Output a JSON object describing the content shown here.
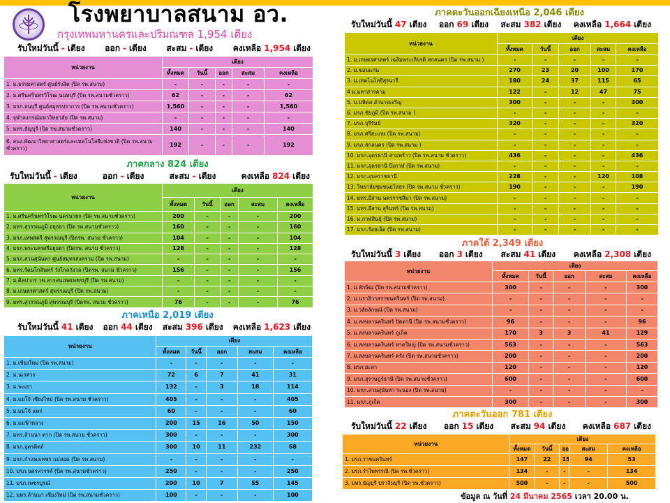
{
  "header": {
    "title": "โรงพยาบาลสนาม อว.",
    "logo_icon": "ministry-seal-icon"
  },
  "labels": {
    "new_today": "รับใหม่วันนี้",
    "beds": "เตียง",
    "out": "ออก",
    "cumulative": "สะสม",
    "remaining": "คงเหลือ"
  },
  "table_headers": {
    "unit": "หน่วยงาน",
    "beds": "เตียง",
    "total": "ทั้งหมด",
    "today": "วันนี้",
    "out": "ออก",
    "cumulative": "สะสม",
    "remaining": "คงเหลือ"
  },
  "sections": [
    {
      "id": "bangkok",
      "title": "กรุงเทพมหานครและปริมณฑล  1,954 เตียง",
      "color": "#e48ed4",
      "title_color": "#e040a8",
      "summary": {
        "new": "-",
        "out": "-",
        "cumulative": "-",
        "remaining": "1,954"
      },
      "rows": [
        [
          "1. ม.ธรรมศาสตร์ ศูนย์รังสิต (ปิด รพ.สนาม)",
          "-",
          "-",
          "-",
          "-",
          "-"
        ],
        [
          "2. ม.ศรีนครินทรวิโรฒ นนทบุรี (ปิด รพ.สนามชั่วคราว)",
          "62",
          "-",
          "-",
          "-",
          "62"
        ],
        [
          "3. มรภ.ธนบุรี ศูนย์สมุทรปราการ (ปิด รพ.สนามชั่วคราว)",
          "1,560",
          "-",
          "-",
          "-",
          "1,560"
        ],
        [
          "4. จุฬาลงกรณ์มหาวิทยาลัย  (ปิด รพ.สนาม)",
          "-",
          "-",
          "-",
          "-",
          "-"
        ],
        [
          "5. มทร.ธัญบุรี (ปิด รพ.สนามชั่วคราว)",
          "140",
          "-",
          "-",
          "-",
          "140"
        ],
        [
          "6. สนง.พัฒนาวิทยาศาสตร์และเทคโนโลยีแห่งชาติ (ปิด รพ.สนาม ชั่วคราว)",
          "192",
          "-",
          "-",
          "-",
          "192"
        ]
      ]
    },
    {
      "id": "central",
      "title": "ภาคกลาง  824 เตียง",
      "color": "#8fcf45",
      "title_color": "#22a54a",
      "summary": {
        "new": "-",
        "out": "-",
        "cumulative": "-",
        "remaining": "824"
      },
      "rows": [
        [
          "1. ม.ศรีนครินทรวิโรฒ นครนายก  (ปิด รพ.สนามชั่วคราว)",
          "200",
          "-",
          "-",
          "-",
          "200"
        ],
        [
          "2. มทร.สุวรรณภูมิ อยุธยา  (ปิด รพ.สนามชั่วคราว)",
          "160",
          "-",
          "-",
          "-",
          "160"
        ],
        [
          "3. มรภ.เทพสตรี สุพรรณบุรี (ปิดรพ. สนาม ชั่วคราว)",
          "104",
          "-",
          "-",
          "-",
          "104"
        ],
        [
          "4. มรภ.พระนครศรีอยุธยา  (ปิดรพ. สนาม ชั่วคราว)",
          "128",
          "-",
          "-",
          "-",
          "128"
        ],
        [
          "5. มรภ.สวนสุนันทา ศูนย์สมุทรสงคราม  (ปิด รพ.สนาม)",
          "-",
          "-",
          "-",
          "-",
          "-"
        ],
        [
          "6. มทร.รัตนโกสินทร์ วังไกลกังวล (ปิดรพ. สนาม ชั่วคราว)",
          "156",
          "-",
          "-",
          "-",
          "156"
        ],
        [
          "7. ม.ศิลปากร วข.สารสนเทศเพชรบุรี (ปิด รพ.สนาม)",
          "-",
          "-",
          "-",
          "-",
          "-"
        ],
        [
          "8. ม.เกษตรศาสตร์ สุพรรณบุรี  (ปิด รพ.สนาม)",
          "-",
          "-",
          "-",
          "-",
          "-"
        ],
        [
          "9. มทร.สุวรรณภูมิ  สุพรรณบุรี (ปิดรพ. สนาม ชั่วคราว)",
          "76",
          "-",
          "-",
          "-",
          "76"
        ]
      ]
    },
    {
      "id": "north",
      "title": "ภาคเหนือ  2,019 เตียง",
      "color": "#55c0f2",
      "title_color": "#1a8fd0",
      "summary": {
        "new": "41",
        "out": "44",
        "cumulative": "396",
        "remaining": "1,623"
      },
      "rows": [
        [
          "1. ม.เชียงใหม่  (ปิด รพ.สนาม)",
          "-",
          "-",
          "-",
          "-",
          "-"
        ],
        [
          "2. ม.นเรศวร",
          "72",
          "6",
          "7",
          "41",
          "31"
        ],
        [
          "3. ม.พะเยา",
          "132",
          "-",
          "3",
          "18",
          "114"
        ],
        [
          "4. ม.แม่โจ้ เชียงใหม่ (ปิด รพ.สนาม ชั่วคราว)",
          "405",
          "-",
          "-",
          "-",
          "405"
        ],
        [
          "5. ม.แม่โจ้ แพร่",
          "60",
          "-",
          "-",
          "-",
          "60"
        ],
        [
          "6. ม.แม่ฟ้าหลวง",
          "200",
          "15",
          "16",
          "50",
          "150"
        ],
        [
          "7. มทร.ล้านนา ตาก  (ปิด รพ.สนาม ชั่วคราว)",
          "300",
          "-",
          "-",
          "-",
          "300"
        ],
        [
          "8. มรภ.อุตรดิตถ์",
          "300",
          "10",
          "11",
          "232",
          "68"
        ],
        [
          "9. มรภ.กำแพงเพชร แม่สอด  (ปิด รพ.สนาม)",
          "-",
          "-",
          "-",
          "-",
          "-"
        ],
        [
          "10. มรภ.นครสวรรค์  (ปิด รพ.สนามชั่วคราว)",
          "250",
          "-",
          "-",
          "-",
          "250"
        ],
        [
          "11. มรภ.เพชรบูรณ์",
          "200",
          "10",
          "7",
          "55",
          "145"
        ],
        [
          "12. มทร.ล้านนา เชียงใหม่ (ปิด รพ.สนามชั่วคราว)",
          "100",
          "-",
          "-",
          "-",
          "100"
        ]
      ]
    },
    {
      "id": "northeast",
      "title": "ภาคตะวันออกเฉียงเหนือ  2,046 เตียง",
      "color": "#c9c800",
      "title_color": "#8a8a00",
      "summary": {
        "new": "47",
        "out": "69",
        "cumulative": "382",
        "remaining": "1,664"
      },
      "rows": [
        [
          "1. ม.เกษตรศาสตร์ เฉลิมพระเกียรติ สกลนคร (ปิด รพ.สนาม )",
          "-",
          "-",
          "-",
          "-",
          "-"
        ],
        [
          "2. ม.ขอนแก่น",
          "270",
          "23",
          "20",
          "100",
          "170"
        ],
        [
          "3. ม.เทคโนโลยีสุรนารี",
          "180",
          "24",
          "37",
          "115",
          "65"
        ],
        [
          "4 ม.มหาสารคาม",
          "122",
          "-",
          "12",
          "47",
          "75"
        ],
        [
          "5. ม.มหิดล อำนาจเจริญ",
          "300",
          "-",
          "-",
          "-",
          "300"
        ],
        [
          "6. มรภ.ชัยภูมิ   (ปิด รพ.สนาม )",
          "-",
          "-",
          "-",
          "-",
          "-"
        ],
        [
          "7. มรภ.บุรีรัมย์",
          "320",
          "-",
          "-",
          "-",
          "320"
        ],
        [
          "8. มรภ.ศรีสะเกษ   (ปิด รพ.สนาม)",
          "-",
          "-",
          "-",
          "-",
          "-"
        ],
        [
          "9. มรภ.สกลนคร  (ปิด รพ.สนาม )",
          "-",
          "-",
          "-",
          "-",
          "-"
        ],
        [
          "10. มรภ.อุดรธานี  สามพร้าว (ปิด รพ.สนาม ชั่วคราว)",
          "436",
          "-",
          "-",
          "-",
          "436"
        ],
        [
          "11. มรภ.อุดรธานี  บึงกาฬ (ปิด รพ.สนาม)",
          "-",
          "-",
          "-",
          "-",
          "-"
        ],
        [
          "12. มรภ.อุบลราชธานี",
          "228",
          "-",
          "-",
          "120",
          "108"
        ],
        [
          "13. วิทยาลัยชุมชนยโสธร  (ปิด รพ.สนาม ชั่วคราว)",
          "190",
          "-",
          "-",
          "-",
          "190"
        ],
        [
          "14. มทร.อีสาน  นครราชสีมา  (ปิด รพ.สนาม)",
          "-",
          "-",
          "-",
          "-",
          "-"
        ],
        [
          "15. มทร.อีสาน  สุรินทร์ (ปิด รพ.สนาม)",
          "-",
          "-",
          "-",
          "-",
          "-"
        ],
        [
          "16. ม.กาฬสินธุ์  (ปิด รพ.สนาม)",
          "-",
          "-",
          "-",
          "-",
          "-"
        ],
        [
          "17. มรภ.ร้อยเอ็ด  (ปิด รพ.สนาม)",
          "-",
          "-",
          "-",
          "-",
          "-"
        ]
      ]
    },
    {
      "id": "south",
      "title": "ภาคใต้  2,349 เตียง",
      "color": "#f2866a",
      "title_color": "#f05a3a",
      "summary": {
        "new": "3",
        "out": "3",
        "cumulative": "41",
        "remaining": "2,308"
      },
      "rows": [
        [
          "1. ม.ทักษิณ  (ปิด รพ.สนามชั่วคราว)",
          "300",
          "-",
          "-",
          "-",
          "300"
        ],
        [
          "2. ม.นราธิวาสราชนครินทร์  (ปิด รพ.สนาม)",
          "-",
          "-",
          "-",
          "-",
          "-"
        ],
        [
          "3. ม.วลัยลักษณ์ (ปิด รพ.สนาม)",
          "-",
          "-",
          "-",
          "-",
          "-"
        ],
        [
          "4. ม.สงขลานครินทร์ ปัตตานี (ปิด รพ.สนามชั่วคราว)",
          "96",
          "-",
          "-",
          "-",
          "96"
        ],
        [
          "5. ม.สงขลานครินทร์ ภูเก็ต",
          "170",
          "3",
          "3",
          "41",
          "129"
        ],
        [
          "6. ม.สงขลานครินทร์ หาดใหญ่  (ปิด รพ.สนามชั่วคราว)",
          "563",
          "-",
          "-",
          "-",
          "563"
        ],
        [
          "7. ม.สงขลานครินทร์ ตรัง  (ปิด รพ.สนามชั่วคราว)",
          "200",
          "-",
          "-",
          "-",
          "200"
        ],
        [
          "8. มรภ.ยะลา",
          "120",
          "-",
          "-",
          "-",
          "120"
        ],
        [
          "9. มรภ.สุราษฎร์ธานี   (ปิด รพ.สนามชั่วคราว)",
          "600",
          "-",
          "-",
          "-",
          "600"
        ],
        [
          "10. มรภ.สวนสุนันทา ระนอง (ปิด รพ.สนาม)",
          "-",
          "-",
          "-",
          "-",
          "-"
        ],
        [
          "11. มรภ.ภูเก็ต",
          "300",
          "-",
          "-",
          "-",
          "300"
        ]
      ]
    },
    {
      "id": "east",
      "title": "ภาคตะวันออก  781 เตียง",
      "color": "#f8a823",
      "title_color": "#e8a000",
      "summary": {
        "new": "22",
        "out": "15",
        "cumulative": "94",
        "remaining": "687"
      },
      "rows": [
        [
          "1. มรภ.ราชนครินทร์",
          "147",
          "22",
          "15",
          "94",
          "53"
        ],
        [
          "2. มรภ.รำไพพรรณี (ปิด รพ.ชั่วคราว)",
          "134",
          "-",
          "-",
          "-",
          "134"
        ],
        [
          "3. มทร.ธัญบุรี  ปราจีนบุรี  (ปิด รพ.ชั่วคราว)",
          "500",
          "-",
          "-",
          "-",
          "500"
        ]
      ]
    }
  ],
  "footer": {
    "prefix": "ข้อมูล ณ วันที่",
    "date": "24 มีนาคม 2565",
    "time": "เวลา 20.00 น."
  }
}
